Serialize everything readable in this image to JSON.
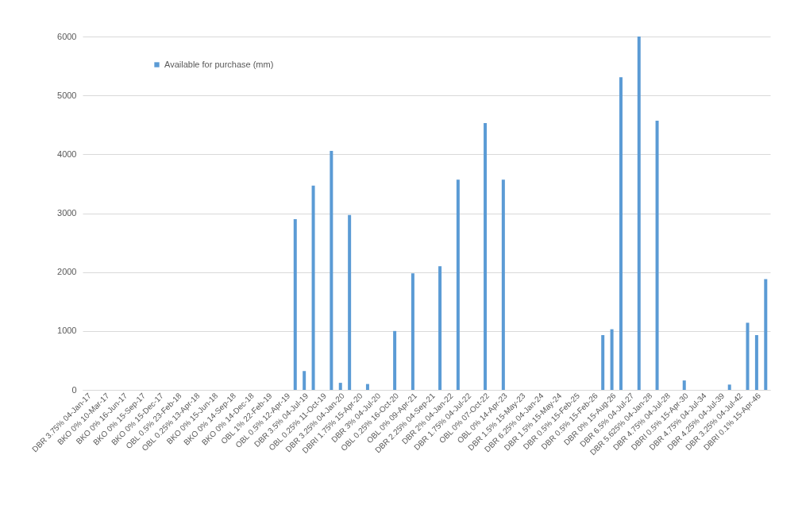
{
  "chart_data": {
    "type": "bar",
    "categories": [
      "DBR 3.75% 04-Jan-17",
      null,
      "BKO 0% 10-Mar-17",
      null,
      "BKO 0% 16-Jun-17",
      null,
      "BKO 0% 15-Sep-17",
      null,
      "BKO 0% 15-Dec-17",
      null,
      "OBL 0.5% 23-Feb-18",
      null,
      "OBL 0.25% 13-Apr-18",
      null,
      "BKO 0% 15-Jun-18",
      null,
      "BKO 0% 14-Sep-18",
      null,
      "BKO 0% 14-Dec-18",
      null,
      "OBL 1% 22-Feb-19",
      null,
      "OBL 0.5% 12-Apr-19",
      null,
      "DBR 3.5% 04-Jul-19",
      null,
      "OBL 0.25% 11-Oct-19",
      null,
      "DBR 3.25% 04-Jan-20",
      null,
      "DBRI 1.75% 15-Apr-20",
      null,
      "DBR 3% 04-Jul-20",
      null,
      "OBL 0.25% 16-Oct-20",
      null,
      "OBL 0% 09-Apr-21",
      null,
      "DBR 2.25% 04-Sep-21",
      null,
      "DBR 2% 04-Jan-22",
      null,
      "DBR 1.75% 04-Jul-22",
      null,
      "OBL 0% 07-Oct-22",
      null,
      "OBL 0% 14-Apr-23",
      null,
      "DBR 1.5% 15-May-23",
      null,
      "DBR 6.25% 04-Jan-24",
      null,
      "DBR 1.5% 15-May-24",
      null,
      "DBR 0.5% 15-Feb-25",
      null,
      "DBR 0.5% 15-Feb-26",
      null,
      "DBR 0% 15-Aug-26",
      null,
      "DBR 6.5% 04-Jul-27",
      null,
      "DBR 5.625% 04-Jan-28",
      null,
      "DBR 4.75% 04-Jul-28",
      null,
      "DBRI 0.5% 15-Apr-30",
      null,
      "DBR 4.75% 04-Jul-34",
      null,
      "DBR 4.25% 04-Jul-39",
      null,
      "DBR 3.25% 04-Jul-42",
      null,
      "DBRI 0.1% 15-Apr-46",
      null
    ],
    "series": [
      {
        "name": "Available for purchase (mm)",
        "color": "#5b9bd5",
        "values": [
          null,
          null,
          null,
          null,
          null,
          null,
          null,
          null,
          null,
          null,
          null,
          null,
          null,
          null,
          null,
          null,
          null,
          null,
          null,
          null,
          null,
          null,
          null,
          2900,
          320,
          3470,
          null,
          4060,
          120,
          2970,
          null,
          100,
          null,
          null,
          1000,
          null,
          1980,
          null,
          null,
          2100,
          null,
          3570,
          null,
          null,
          4530,
          null,
          3570,
          null,
          null,
          null,
          null,
          null,
          null,
          null,
          null,
          null,
          null,
          930,
          1030,
          5310,
          null,
          6000,
          null,
          4570,
          null,
          null,
          160,
          null,
          null,
          null,
          null,
          90,
          null,
          1140,
          930,
          1880
        ]
      }
    ],
    "ylim": [
      0,
      6000
    ],
    "yticks": [
      0,
      1000,
      2000,
      3000,
      4000,
      5000,
      6000
    ],
    "grid": "y",
    "legend": "top left"
  }
}
